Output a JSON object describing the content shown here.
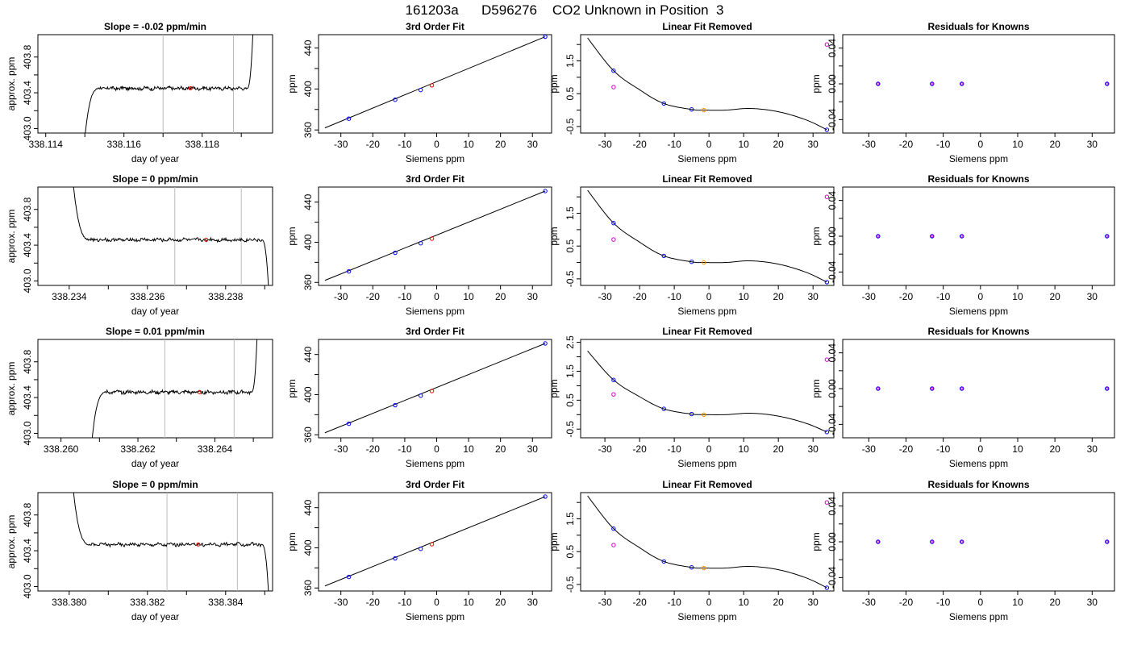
{
  "title": "161203a      D596276    CO2 Unknown in Position  3",
  "colors": {
    "known": "#0000ff",
    "unknown": "#ff0000",
    "fit_unknown": "#ff8c00",
    "residual_marker": "#cc00cc",
    "line": "#000000",
    "vline": "#bbbbbb"
  },
  "chart_data": [
    {
      "row": 1,
      "type": "line",
      "title": "Slope =  -0.02  ppm/min",
      "xlabel": "day of year",
      "ylabel": "approx. ppm",
      "xlim": [
        338.1138,
        338.1198
      ],
      "ylim": [
        402.95,
        404.05
      ],
      "xticks": [
        338.114,
        338.116,
        338.118
      ],
      "xtick_labels": [
        "338.114",
        "338.116",
        "338.118"
      ],
      "xminor": [
        338.115,
        338.117,
        338.119
      ],
      "yticks": [
        403.0,
        403.4,
        403.8
      ],
      "ytick_labels": [
        "403.0",
        "403.4",
        "403.8"
      ],
      "yminor": [
        403.2,
        403.6
      ],
      "vlines": [
        338.117,
        338.1188
      ],
      "trace": {
        "x0": 338.115,
        "x1": 338.1193,
        "level": 403.45,
        "start": 402.9,
        "start_shape": "rise",
        "end": 404.1,
        "end_shape": "rise"
      },
      "marker": {
        "x": 338.1177,
        "y": 403.45
      }
    },
    {
      "row": 1,
      "type": "scatter",
      "title": "3rd Order Fit",
      "xlabel": "Siemens ppm",
      "ylabel": "ppm",
      "xlim": [
        -37,
        36
      ],
      "ylim": [
        357,
        453
      ],
      "xticks": [
        -30,
        -20,
        -10,
        0,
        10,
        20,
        30
      ],
      "xtick_labels": [
        "-30",
        "-20",
        "-10",
        "0",
        "10",
        "20",
        "30"
      ],
      "yticks": [
        360,
        400,
        440
      ],
      "ytick_labels": [
        "360",
        "400",
        "440"
      ],
      "yminor": [
        380,
        420
      ],
      "line": {
        "x": [
          -35,
          34
        ],
        "y": [
          362,
          451
        ]
      },
      "knowns": {
        "x": [
          -27.5,
          -13,
          -5,
          34
        ],
        "y": [
          371,
          389.5,
          399,
          451
        ]
      },
      "unknown": {
        "x": [
          -1.5
        ],
        "y": [
          403.6
        ]
      }
    },
    {
      "row": 1,
      "type": "scatter",
      "title": "Linear Fit Removed",
      "xlabel": "Siemens ppm",
      "ylabel": "ppm",
      "xlim": [
        -37,
        36
      ],
      "ylim": [
        -0.7,
        2.3
      ],
      "xticks": [
        -30,
        -20,
        -10,
        0,
        10,
        20,
        30
      ],
      "xtick_labels": [
        "-30",
        "-20",
        "-10",
        "0",
        "10",
        "20",
        "30"
      ],
      "yticks": [
        -0.5,
        0.5,
        1.5
      ],
      "ytick_labels": [
        "-0.5",
        "0.5",
        "1.5"
      ],
      "yminor": [
        0,
        1,
        2
      ],
      "curve": {
        "x0": -35,
        "x1": 34,
        "x": [
          -35,
          -27.5,
          -20,
          -13,
          -5,
          -1.5,
          5,
          12,
          20,
          28,
          34
        ],
        "y": [
          2.2,
          1.2,
          0.62,
          0.2,
          0.02,
          0.0,
          0.0,
          0.05,
          -0.05,
          -0.3,
          -0.6
        ]
      },
      "knowns": {
        "x": [
          -27.5,
          -13,
          -5,
          34
        ],
        "y": [
          1.2,
          0.2,
          0.02,
          -0.6
        ]
      },
      "unknown": {
        "x": [
          -1.5
        ],
        "y": [
          0.0
        ]
      },
      "residual_points": {
        "x": [
          -27.5,
          34
        ],
        "y": [
          0.7,
          2.0
        ]
      }
    },
    {
      "row": 1,
      "type": "scatter",
      "title": "Residuals for Knowns",
      "xlabel": "Siemens ppm",
      "ylabel": "ppm",
      "xlim": [
        -37,
        36
      ],
      "ylim": [
        -0.055,
        0.055
      ],
      "xticks": [
        -30,
        -20,
        -10,
        0,
        10,
        20,
        30
      ],
      "xtick_labels": [
        "-30",
        "-20",
        "-10",
        "0",
        "10",
        "20",
        "30"
      ],
      "yticks": [
        -0.04,
        0.0,
        0.04
      ],
      "ytick_labels": [
        "-0.04",
        "0.00",
        "0.04"
      ],
      "yminor": [
        -0.02,
        0.02
      ],
      "knowns": {
        "x": [
          -27.5,
          -13,
          -5,
          34
        ],
        "y": [
          0,
          0,
          0,
          0
        ]
      }
    },
    {
      "row": 2,
      "type": "line",
      "title": "Slope =  0  ppm/min",
      "xlabel": "day of year",
      "ylabel": "approx. ppm",
      "xlim": [
        338.2332,
        338.2392
      ],
      "ylim": [
        402.95,
        404.05
      ],
      "xticks": [
        338.234,
        338.236,
        338.238
      ],
      "xtick_labels": [
        "338.234",
        "338.236",
        "338.238"
      ],
      "xminor": [
        338.235,
        338.237,
        338.239
      ],
      "yticks": [
        403.0,
        403.4,
        403.8
      ],
      "ytick_labels": [
        "403.0",
        "403.4",
        "403.8"
      ],
      "yminor": [
        403.2,
        403.6
      ],
      "vlines": [
        338.2367,
        338.2384
      ],
      "trace": {
        "x0": 338.2341,
        "x1": 338.2391,
        "level": 403.46,
        "start": 404.1,
        "start_shape": "fall",
        "end": 402.9,
        "end_shape": "fall"
      },
      "marker": {
        "x": 338.2375,
        "y": 403.46
      }
    },
    {
      "row": 2,
      "type": "scatter",
      "title": "3rd Order Fit",
      "xlabel": "Siemens ppm",
      "ylabel": "ppm",
      "xlim": [
        -37,
        36
      ],
      "ylim": [
        357,
        455
      ],
      "xticks": [
        -30,
        -20,
        -10,
        0,
        10,
        20,
        30
      ],
      "xtick_labels": [
        "-30",
        "-20",
        "-10",
        "0",
        "10",
        "20",
        "30"
      ],
      "yticks": [
        360,
        400,
        440
      ],
      "ytick_labels": [
        "360",
        "400",
        "440"
      ],
      "yminor": [
        380,
        420
      ],
      "line": {
        "x": [
          -35,
          34
        ],
        "y": [
          362,
          451
        ]
      },
      "knowns": {
        "x": [
          -27.5,
          -13,
          -5,
          34
        ],
        "y": [
          371,
          389.5,
          399,
          451
        ]
      },
      "unknown": {
        "x": [
          -1.5
        ],
        "y": [
          403.6
        ]
      }
    },
    {
      "row": 2,
      "type": "scatter",
      "title": "Linear Fit Removed",
      "xlabel": "Siemens ppm",
      "ylabel": "ppm",
      "xlim": [
        -37,
        36
      ],
      "ylim": [
        -0.7,
        2.3
      ],
      "xticks": [
        -30,
        -20,
        -10,
        0,
        10,
        20,
        30
      ],
      "xtick_labels": [
        "-30",
        "-20",
        "-10",
        "0",
        "10",
        "20",
        "30"
      ],
      "yticks": [
        -0.5,
        0.5,
        1.5
      ],
      "ytick_labels": [
        "-0.5",
        "0.5",
        "1.5"
      ],
      "yminor": [
        0,
        1,
        2
      ],
      "curve": {
        "x0": -35,
        "x1": 34,
        "x": [
          -35,
          -27.5,
          -20,
          -13,
          -5,
          -1.5,
          5,
          12,
          20,
          28,
          34
        ],
        "y": [
          2.2,
          1.2,
          0.62,
          0.2,
          0.02,
          0.0,
          0.0,
          0.05,
          -0.05,
          -0.3,
          -0.6
        ]
      },
      "knowns": {
        "x": [
          -27.5,
          -13,
          -5,
          34
        ],
        "y": [
          1.2,
          0.2,
          0.02,
          -0.6
        ]
      },
      "unknown": {
        "x": [
          -1.5
        ],
        "y": [
          0.0
        ]
      },
      "residual_points": {
        "x": [
          -27.5,
          34
        ],
        "y": [
          0.7,
          2.0
        ]
      }
    },
    {
      "row": 2,
      "type": "scatter",
      "title": "Residuals for Knowns",
      "xlabel": "Siemens ppm",
      "ylabel": "ppm",
      "xlim": [
        -37,
        36
      ],
      "ylim": [
        -0.055,
        0.055
      ],
      "xticks": [
        -30,
        -20,
        -10,
        0,
        10,
        20,
        30
      ],
      "xtick_labels": [
        "-30",
        "-20",
        "-10",
        "0",
        "10",
        "20",
        "30"
      ],
      "yticks": [
        -0.04,
        0.0,
        0.04
      ],
      "ytick_labels": [
        "-0.04",
        "0.00",
        "0.04"
      ],
      "yminor": [
        -0.02,
        0.02
      ],
      "knowns": {
        "x": [
          -27.5,
          -13,
          -5,
          34
        ],
        "y": [
          0,
          0,
          0,
          0
        ]
      }
    },
    {
      "row": 3,
      "type": "line",
      "title": "Slope =  0.01  ppm/min",
      "xlabel": "day of year",
      "ylabel": "approx. ppm",
      "xlim": [
        338.2594,
        338.2655
      ],
      "ylim": [
        402.95,
        404.05
      ],
      "xticks": [
        338.26,
        338.262,
        338.264
      ],
      "xtick_labels": [
        "338.260",
        "338.262",
        "338.264"
      ],
      "xminor": [
        338.261,
        338.263,
        338.265
      ],
      "yticks": [
        403.0,
        403.4,
        403.8
      ],
      "ytick_labels": [
        "403.0",
        "403.4",
        "403.8"
      ],
      "yminor": [
        403.2,
        403.6
      ],
      "vlines": [
        338.2627,
        338.2645
      ],
      "trace": {
        "x0": 338.2608,
        "x1": 338.2651,
        "level": 403.46,
        "start": 402.9,
        "start_shape": "rise",
        "end": 404.1,
        "end_shape": "rise"
      },
      "marker": {
        "x": 338.2636,
        "y": 403.46
      }
    },
    {
      "row": 3,
      "type": "scatter",
      "title": "3rd Order Fit",
      "xlabel": "Siemens ppm",
      "ylabel": "ppm",
      "xlim": [
        -37,
        36
      ],
      "ylim": [
        357,
        455
      ],
      "xticks": [
        -30,
        -20,
        -10,
        0,
        10,
        20,
        30
      ],
      "xtick_labels": [
        "-30",
        "-20",
        "-10",
        "0",
        "10",
        "20",
        "30"
      ],
      "yticks": [
        360,
        400,
        440
      ],
      "ytick_labels": [
        "360",
        "400",
        "440"
      ],
      "yminor": [
        380,
        420
      ],
      "line": {
        "x": [
          -35,
          34
        ],
        "y": [
          362,
          451
        ]
      },
      "knowns": {
        "x": [
          -27.5,
          -13,
          -5,
          34
        ],
        "y": [
          371,
          389.5,
          399,
          451
        ]
      },
      "unknown": {
        "x": [
          -1.5
        ],
        "y": [
          403.6
        ]
      }
    },
    {
      "row": 3,
      "type": "scatter",
      "title": "Linear Fit Removed",
      "xlabel": "Siemens ppm",
      "ylabel": "ppm",
      "xlim": [
        -37,
        36
      ],
      "ylim": [
        -0.8,
        2.6
      ],
      "xticks": [
        -30,
        -20,
        -10,
        0,
        10,
        20,
        30
      ],
      "xtick_labels": [
        "-30",
        "-20",
        "-10",
        "0",
        "10",
        "20",
        "30"
      ],
      "yticks": [
        -0.5,
        0.5,
        1.5,
        2.5
      ],
      "ytick_labels": [
        "-0.5",
        "0.5",
        "1.5",
        "2.5"
      ],
      "yminor": [
        0,
        1,
        2
      ],
      "curve": {
        "x0": -35,
        "x1": 34,
        "x": [
          -35,
          -27.5,
          -20,
          -13,
          -5,
          -1.5,
          5,
          12,
          20,
          28,
          34
        ],
        "y": [
          2.2,
          1.2,
          0.62,
          0.2,
          0.02,
          0.0,
          0.0,
          0.05,
          -0.05,
          -0.3,
          -0.6
        ]
      },
      "knowns": {
        "x": [
          -27.5,
          -13,
          -5,
          34
        ],
        "y": [
          1.2,
          0.2,
          0.02,
          -0.6
        ]
      },
      "unknown": {
        "x": [
          -1.5
        ],
        "y": [
          0.0
        ]
      },
      "residual_points": {
        "x": [
          -27.5,
          34
        ],
        "y": [
          0.7,
          1.9
        ]
      }
    },
    {
      "row": 3,
      "type": "scatter",
      "title": "Residuals for Knowns",
      "xlabel": "Siemens ppm",
      "ylabel": "ppm",
      "xlim": [
        -37,
        36
      ],
      "ylim": [
        -0.055,
        0.055
      ],
      "xticks": [
        -30,
        -20,
        -10,
        0,
        10,
        20,
        30
      ],
      "xtick_labels": [
        "-30",
        "-20",
        "-10",
        "0",
        "10",
        "20",
        "30"
      ],
      "yticks": [
        -0.04,
        0.0,
        0.04
      ],
      "ytick_labels": [
        "-0.04",
        "0.00",
        "0.04"
      ],
      "yminor": [
        -0.02,
        0.02
      ],
      "knowns": {
        "x": [
          -27.5,
          -13,
          -5,
          34
        ],
        "y": [
          0,
          0,
          0,
          0
        ]
      }
    },
    {
      "row": 4,
      "type": "line",
      "title": "Slope =  0  ppm/min",
      "xlabel": "day of year",
      "ylabel": "approx. ppm",
      "xlim": [
        338.3792,
        338.3852
      ],
      "ylim": [
        402.95,
        404.05
      ],
      "xticks": [
        338.38,
        338.382,
        338.384
      ],
      "xtick_labels": [
        "338.380",
        "338.382",
        "338.384"
      ],
      "xminor": [
        338.381,
        338.383,
        338.385
      ],
      "yticks": [
        403.0,
        403.4,
        403.8
      ],
      "ytick_labels": [
        "403.0",
        "403.4",
        "403.8"
      ],
      "yminor": [
        403.2,
        403.6
      ],
      "vlines": [
        338.3825,
        338.3843
      ],
      "trace": {
        "x0": 338.3801,
        "x1": 338.3851,
        "level": 403.47,
        "start": 404.1,
        "start_shape": "fall",
        "end": 402.9,
        "end_shape": "fall"
      },
      "marker": {
        "x": 338.3833,
        "y": 403.47
      }
    },
    {
      "row": 4,
      "type": "scatter",
      "title": "3rd Order Fit",
      "xlabel": "Siemens ppm",
      "ylabel": "ppm",
      "xlim": [
        -37,
        36
      ],
      "ylim": [
        357,
        455
      ],
      "xticks": [
        -30,
        -20,
        -10,
        0,
        10,
        20,
        30
      ],
      "xtick_labels": [
        "-30",
        "-20",
        "-10",
        "0",
        "10",
        "20",
        "30"
      ],
      "yticks": [
        360,
        400,
        440
      ],
      "ytick_labels": [
        "360",
        "400",
        "440"
      ],
      "yminor": [
        380,
        420
      ],
      "line": {
        "x": [
          -35,
          34
        ],
        "y": [
          362,
          451
        ]
      },
      "knowns": {
        "x": [
          -27.5,
          -13,
          -5,
          34
        ],
        "y": [
          371,
          389.5,
          399,
          451
        ]
      },
      "unknown": {
        "x": [
          -1.5
        ],
        "y": [
          403.6
        ]
      }
    },
    {
      "row": 4,
      "type": "scatter",
      "title": "Linear Fit Removed",
      "xlabel": "Siemens ppm",
      "ylabel": "ppm",
      "xlim": [
        -37,
        36
      ],
      "ylim": [
        -0.7,
        2.3
      ],
      "xticks": [
        -30,
        -20,
        -10,
        0,
        10,
        20,
        30
      ],
      "xtick_labels": [
        "-30",
        "-20",
        "-10",
        "0",
        "10",
        "20",
        "30"
      ],
      "yticks": [
        -0.5,
        0.5,
        1.5
      ],
      "ytick_labels": [
        "-0.5",
        "0.5",
        "1.5"
      ],
      "yminor": [
        0,
        1,
        2
      ],
      "curve": {
        "x0": -35,
        "x1": 34,
        "x": [
          -35,
          -27.5,
          -20,
          -13,
          -5,
          -1.5,
          5,
          12,
          20,
          28,
          34
        ],
        "y": [
          2.2,
          1.2,
          0.62,
          0.2,
          0.02,
          0.0,
          0.0,
          0.05,
          -0.05,
          -0.3,
          -0.6
        ]
      },
      "knowns": {
        "x": [
          -27.5,
          -13,
          -5,
          34
        ],
        "y": [
          1.2,
          0.2,
          0.02,
          -0.6
        ]
      },
      "unknown": {
        "x": [
          -1.5
        ],
        "y": [
          0.0
        ]
      },
      "residual_points": {
        "x": [
          -27.5,
          34
        ],
        "y": [
          0.7,
          2.0
        ]
      }
    },
    {
      "row": 4,
      "type": "scatter",
      "title": "Residuals for Knowns",
      "xlabel": "Siemens ppm",
      "ylabel": "ppm",
      "xlim": [
        -37,
        36
      ],
      "ylim": [
        -0.055,
        0.055
      ],
      "xticks": [
        -30,
        -20,
        -10,
        0,
        10,
        20,
        30
      ],
      "xtick_labels": [
        "-30",
        "-20",
        "-10",
        "0",
        "10",
        "20",
        "30"
      ],
      "yticks": [
        -0.04,
        0.0,
        0.04
      ],
      "ytick_labels": [
        "-0.04",
        "0.00",
        "0.04"
      ],
      "yminor": [
        -0.02,
        0.02
      ],
      "knowns": {
        "x": [
          -27.5,
          -13,
          -5,
          34
        ],
        "y": [
          0,
          0,
          0,
          0
        ]
      }
    }
  ]
}
